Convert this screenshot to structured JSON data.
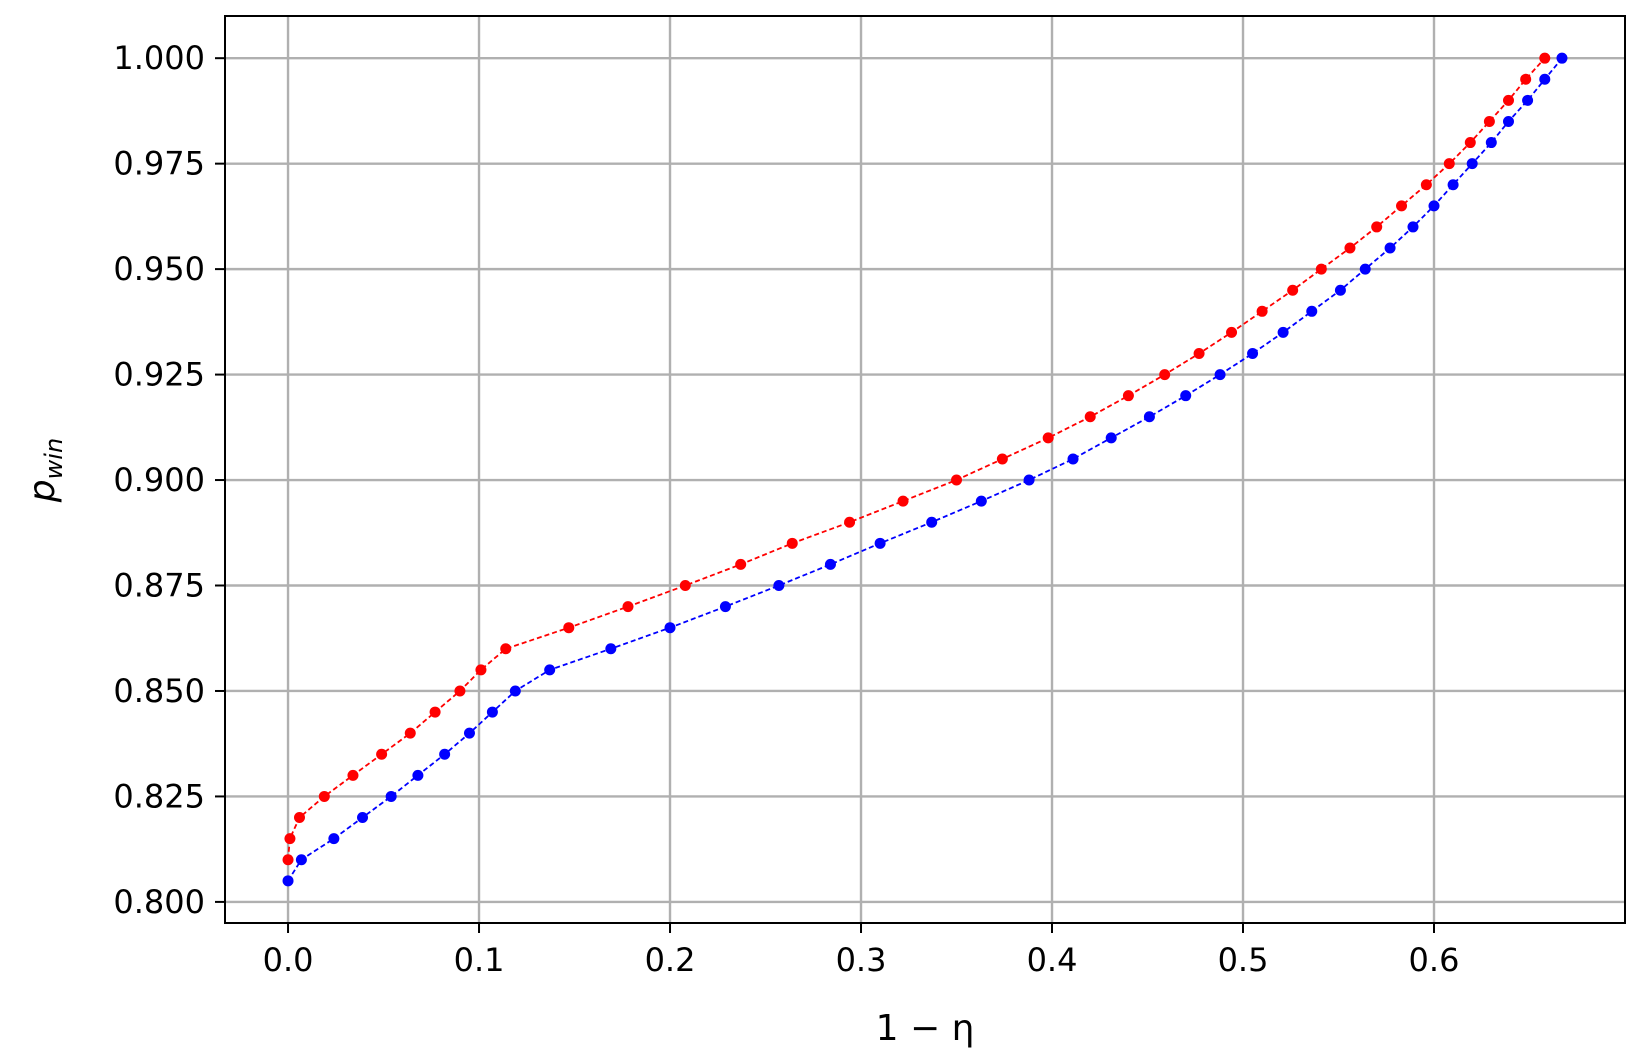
{
  "chart_data": {
    "type": "line",
    "title": "",
    "xlabel": "1 − η",
    "ylabel_main": "p",
    "ylabel_sub": "win",
    "xlim": [
      -0.033,
      0.7
    ],
    "ylim": [
      0.795,
      1.01
    ],
    "xticks": [
      0.0,
      0.1,
      0.2,
      0.3,
      0.4,
      0.5,
      0.6
    ],
    "xtick_labels": [
      "0.0",
      "0.1",
      "0.2",
      "0.3",
      "0.4",
      "0.5",
      "0.6"
    ],
    "yticks": [
      0.8,
      0.825,
      0.85,
      0.875,
      0.9,
      0.925,
      0.95,
      0.975,
      1.0
    ],
    "ytick_labels": [
      "0.800",
      "0.825",
      "0.850",
      "0.875",
      "0.900",
      "0.925",
      "0.950",
      "0.975",
      "1.000"
    ],
    "grid": true,
    "series": [
      {
        "color": "#ff0000",
        "style": "dashed-with-markers",
        "x": [
          0.0,
          0.001,
          0.006,
          0.019,
          0.034,
          0.049,
          0.064,
          0.077,
          0.09,
          0.101,
          0.114,
          0.147,
          0.178,
          0.208,
          0.237,
          0.264,
          0.294,
          0.322,
          0.35,
          0.374,
          0.398,
          0.42,
          0.44,
          0.459,
          0.477,
          0.494,
          0.51,
          0.526,
          0.541,
          0.556,
          0.57,
          0.583,
          0.596,
          0.608,
          0.619,
          0.629,
          0.639,
          0.648,
          0.658
        ],
        "y": [
          0.81,
          0.815,
          0.82,
          0.825,
          0.83,
          0.835,
          0.84,
          0.845,
          0.85,
          0.855,
          0.86,
          0.865,
          0.87,
          0.875,
          0.88,
          0.885,
          0.89,
          0.895,
          0.9,
          0.905,
          0.91,
          0.915,
          0.92,
          0.925,
          0.93,
          0.935,
          0.94,
          0.945,
          0.95,
          0.955,
          0.96,
          0.965,
          0.97,
          0.975,
          0.98,
          0.985,
          0.99,
          0.995,
          1.0
        ]
      },
      {
        "color": "#0000ff",
        "style": "dashed-with-markers",
        "x": [
          0.0,
          0.007,
          0.024,
          0.039,
          0.054,
          0.068,
          0.082,
          0.095,
          0.107,
          0.119,
          0.137,
          0.169,
          0.2,
          0.229,
          0.257,
          0.284,
          0.31,
          0.337,
          0.363,
          0.388,
          0.411,
          0.431,
          0.451,
          0.47,
          0.488,
          0.505,
          0.521,
          0.536,
          0.551,
          0.564,
          0.577,
          0.589,
          0.6,
          0.61,
          0.62,
          0.63,
          0.639,
          0.649,
          0.658,
          0.667
        ],
        "y": [
          0.805,
          0.81,
          0.815,
          0.82,
          0.825,
          0.83,
          0.835,
          0.84,
          0.845,
          0.85,
          0.855,
          0.86,
          0.865,
          0.87,
          0.875,
          0.88,
          0.885,
          0.89,
          0.895,
          0.9,
          0.905,
          0.91,
          0.915,
          0.92,
          0.925,
          0.93,
          0.935,
          0.94,
          0.945,
          0.95,
          0.955,
          0.96,
          0.965,
          0.97,
          0.975,
          0.98,
          0.985,
          0.99,
          0.995,
          1.0
        ]
      }
    ]
  }
}
